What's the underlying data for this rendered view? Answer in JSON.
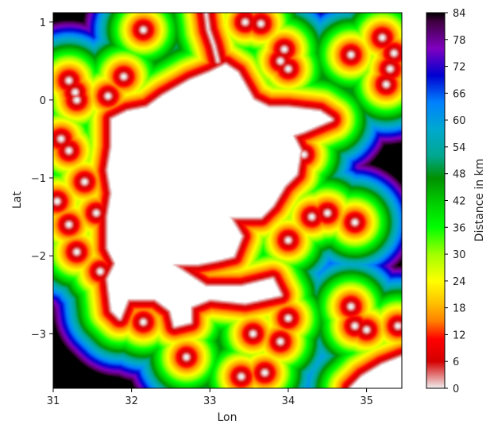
{
  "chart_data": {
    "type": "heatmap",
    "title": "",
    "xlabel": "Lon",
    "ylabel": "Lat",
    "xlim": [
      31.0,
      35.45
    ],
    "ylim": [
      -3.7,
      1.12
    ],
    "xticks": [
      "31",
      "32",
      "33",
      "34",
      "35"
    ],
    "yticks": [
      "1",
      "0",
      "−1",
      "−2",
      "−3"
    ],
    "colorbar": {
      "label": "Distance in km",
      "range": [
        0,
        84
      ],
      "ticks": [
        "0",
        "6",
        "12",
        "18",
        "24",
        "30",
        "36",
        "42",
        "48",
        "54",
        "60",
        "66",
        "72",
        "78",
        "84"
      ],
      "colormap": [
        [
          0,
          "#f0f0f0"
        ],
        [
          6,
          "#d40000"
        ],
        [
          11,
          "#ff0000"
        ],
        [
          15,
          "#ff8000"
        ],
        [
          19,
          "#ffc000"
        ],
        [
          24,
          "#ffff00"
        ],
        [
          30,
          "#a0ff00"
        ],
        [
          36,
          "#00ff00"
        ],
        [
          42,
          "#00c800"
        ],
        [
          47,
          "#009000"
        ],
        [
          52,
          "#00a890"
        ],
        [
          58,
          "#00a8d0"
        ],
        [
          64,
          "#0080ff"
        ],
        [
          70,
          "#0000d0"
        ],
        [
          76,
          "#8000c0"
        ],
        [
          82,
          "#400040"
        ],
        [
          84,
          "#000000"
        ]
      ]
    },
    "land_value": "#ffffff",
    "sources": [
      {
        "lon": 32.15,
        "lat": 0.9
      },
      {
        "lon": 33.45,
        "lat": 1.0
      },
      {
        "lon": 33.65,
        "lat": 0.98
      },
      {
        "lon": 33.95,
        "lat": 0.65
      },
      {
        "lon": 33.9,
        "lat": 0.5
      },
      {
        "lon": 34.0,
        "lat": 0.4
      },
      {
        "lon": 35.2,
        "lat": 0.8
      },
      {
        "lon": 35.3,
        "lat": 0.4
      },
      {
        "lon": 35.25,
        "lat": 0.2
      },
      {
        "lon": 34.8,
        "lat": 0.58
      },
      {
        "lon": 35.35,
        "lat": 0.6
      },
      {
        "lon": 31.2,
        "lat": 0.25
      },
      {
        "lon": 31.28,
        "lat": 0.1
      },
      {
        "lon": 31.3,
        "lat": 0.0
      },
      {
        "lon": 31.7,
        "lat": 0.05
      },
      {
        "lon": 31.9,
        "lat": 0.3
      },
      {
        "lon": 31.2,
        "lat": -0.65
      },
      {
        "lon": 31.1,
        "lat": -0.5
      },
      {
        "lon": 31.4,
        "lat": -1.05
      },
      {
        "lon": 31.55,
        "lat": -1.45
      },
      {
        "lon": 31.2,
        "lat": -1.6
      },
      {
        "lon": 31.05,
        "lat": -1.3
      },
      {
        "lon": 31.3,
        "lat": -1.95
      },
      {
        "lon": 31.6,
        "lat": -2.2
      },
      {
        "lon": 32.15,
        "lat": -2.85
      },
      {
        "lon": 32.7,
        "lat": -3.3
      },
      {
        "lon": 33.55,
        "lat": -3.0
      },
      {
        "lon": 33.4,
        "lat": -3.55
      },
      {
        "lon": 33.7,
        "lat": -3.5
      },
      {
        "lon": 33.9,
        "lat": -3.1
      },
      {
        "lon": 34.0,
        "lat": -2.8
      },
      {
        "lon": 33.65,
        "lat": -2.5
      },
      {
        "lon": 34.3,
        "lat": -1.5
      },
      {
        "lon": 34.5,
        "lat": -1.45
      },
      {
        "lon": 34.85,
        "lat": -1.57
      },
      {
        "lon": 34.0,
        "lat": -1.8
      },
      {
        "lon": 34.8,
        "lat": -2.65
      },
      {
        "lon": 34.85,
        "lat": -2.9
      },
      {
        "lon": 35.0,
        "lat": -2.95
      },
      {
        "lon": 35.4,
        "lat": -2.9
      },
      {
        "lon": 35.35,
        "lat": -3.55
      },
      {
        "lon": 34.2,
        "lat": -0.7
      }
    ]
  }
}
